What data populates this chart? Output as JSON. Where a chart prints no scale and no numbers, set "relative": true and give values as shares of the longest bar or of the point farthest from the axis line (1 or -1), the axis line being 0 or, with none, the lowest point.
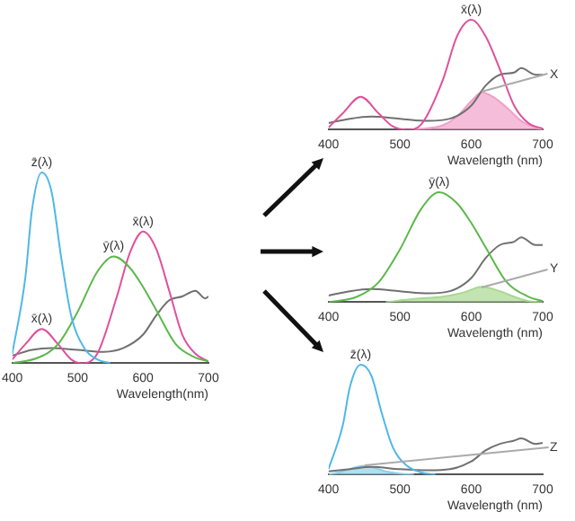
{
  "chart_data": [
    {
      "type": "line",
      "relative": true,
      "xlabel": "Wavelength(nm)",
      "xlim": [
        400,
        700
      ],
      "xticks": [
        400,
        500,
        600,
        700
      ],
      "tick_labels": "x",
      "marker": "none",
      "annotations": [
        {
          "text": "x̄(λ)",
          "x": 445,
          "y": 0.18
        }
      ],
      "series": [
        {
          "name": "z̄(λ)",
          "color": "#4fb8e8",
          "x": [
            400,
            420,
            430,
            445,
            460,
            475,
            490,
            510,
            530,
            550
          ],
          "values": [
            0.05,
            0.45,
            0.8,
            1.0,
            0.9,
            0.55,
            0.25,
            0.08,
            0.02,
            0
          ]
        },
        {
          "name": "ȳ(λ)",
          "color": "#5cb84c",
          "x": [
            400,
            440,
            470,
            500,
            530,
            555,
            580,
            600,
            620,
            650,
            680,
            700
          ],
          "values": [
            0,
            0.03,
            0.1,
            0.27,
            0.48,
            0.56,
            0.5,
            0.4,
            0.28,
            0.1,
            0.03,
            0.01
          ]
        },
        {
          "name": "x̄(λ)",
          "color": "#e0509a",
          "x": [
            400,
            420,
            445,
            470,
            490,
            505,
            530,
            560,
            580,
            600,
            620,
            640,
            660,
            680,
            700
          ],
          "values": [
            0.02,
            0.1,
            0.18,
            0.1,
            0.02,
            0,
            0.05,
            0.35,
            0.58,
            0.69,
            0.6,
            0.38,
            0.15,
            0.05,
            0.01
          ]
        },
        {
          "color": "#707070",
          "x": [
            400,
            430,
            460,
            500,
            540,
            570,
            600,
            620,
            640,
            660,
            680,
            695,
            700
          ],
          "values": [
            0.04,
            0.07,
            0.08,
            0.07,
            0.06,
            0.08,
            0.15,
            0.25,
            0.33,
            0.35,
            0.38,
            0.34,
            0.35
          ]
        }
      ]
    },
    {
      "type": "line",
      "relative": true,
      "xlabel": "Wavelength (nm)",
      "xlim": [
        400,
        700
      ],
      "xticks": [
        400,
        500,
        600,
        700
      ],
      "tick_labels": "x",
      "marker": "none",
      "annotations": [
        "X"
      ],
      "series": [
        {
          "name": "x̄(λ)",
          "color": "#e0509a",
          "x": [
            400,
            420,
            445,
            470,
            490,
            510,
            530,
            560,
            580,
            600,
            620,
            640,
            660,
            680,
            700
          ],
          "values": [
            0.02,
            0.15,
            0.3,
            0.15,
            0.03,
            0,
            0.05,
            0.45,
            0.85,
            1.0,
            0.85,
            0.55,
            0.22,
            0.06,
            0.01
          ]
        },
        {
          "color": "#707070",
          "x": [
            400,
            430,
            460,
            500,
            540,
            570,
            600,
            620,
            640,
            660,
            670,
            690,
            700
          ],
          "values": [
            0.06,
            0.1,
            0.12,
            0.1,
            0.08,
            0.1,
            0.22,
            0.4,
            0.5,
            0.52,
            0.56,
            0.5,
            0.5
          ]
        },
        {
          "type": "area",
          "color": "#f0a0c8",
          "x": [
            520,
            560,
            580,
            600,
            615,
            630,
            650,
            670,
            690,
            700
          ],
          "values": [
            0,
            0.04,
            0.12,
            0.26,
            0.34,
            0.3,
            0.2,
            0.08,
            0.02,
            0
          ]
        }
      ]
    },
    {
      "type": "line",
      "relative": true,
      "xlabel": "Wavelength (nm)",
      "xlim": [
        400,
        700
      ],
      "xticks": [
        400,
        500,
        600,
        700
      ],
      "tick_labels": "x",
      "marker": "none",
      "annotations": [
        "Y"
      ],
      "series": [
        {
          "name": "ȳ(λ)",
          "color": "#5cb84c",
          "x": [
            400,
            440,
            470,
            500,
            530,
            555,
            580,
            600,
            620,
            650,
            680,
            700
          ],
          "values": [
            0,
            0.05,
            0.18,
            0.48,
            0.85,
            1.0,
            0.9,
            0.72,
            0.5,
            0.18,
            0.05,
            0.01
          ]
        },
        {
          "color": "#707070",
          "x": [
            400,
            430,
            460,
            500,
            540,
            570,
            600,
            620,
            640,
            660,
            670,
            690,
            700
          ],
          "values": [
            0.06,
            0.1,
            0.12,
            0.1,
            0.08,
            0.1,
            0.22,
            0.4,
            0.52,
            0.55,
            0.59,
            0.52,
            0.52
          ]
        },
        {
          "type": "area",
          "color": "#a8d890",
          "x": [
            480,
            520,
            560,
            590,
            615,
            640,
            660,
            680,
            700
          ],
          "values": [
            0,
            0.03,
            0.05,
            0.09,
            0.14,
            0.1,
            0.05,
            0.01,
            0
          ]
        }
      ]
    },
    {
      "type": "line",
      "relative": true,
      "xlabel": "Wavelength (nm)",
      "xlim": [
        400,
        700
      ],
      "xticks": [
        400,
        500,
        600,
        700
      ],
      "tick_labels": "x",
      "marker": "none",
      "annotations": [
        "Z"
      ],
      "series": [
        {
          "name": "z̄(λ)",
          "color": "#4fb8e8",
          "x": [
            400,
            420,
            430,
            445,
            460,
            475,
            490,
            510,
            530,
            550
          ],
          "values": [
            0.05,
            0.45,
            0.8,
            1.0,
            0.9,
            0.55,
            0.25,
            0.08,
            0.02,
            0
          ]
        },
        {
          "color": "#707070",
          "x": [
            400,
            430,
            460,
            500,
            540,
            570,
            600,
            620,
            640,
            660,
            670,
            690,
            700
          ],
          "values": [
            0.03,
            0.05,
            0.07,
            0.05,
            0.04,
            0.05,
            0.12,
            0.22,
            0.28,
            0.31,
            0.33,
            0.28,
            0.29
          ]
        },
        {
          "type": "area",
          "color": "#90d0e8",
          "x": [
            400,
            420,
            440,
            450,
            465,
            480,
            500,
            520
          ],
          "values": [
            0,
            0.03,
            0.07,
            0.08,
            0.06,
            0.03,
            0.01,
            0
          ]
        }
      ]
    }
  ]
}
